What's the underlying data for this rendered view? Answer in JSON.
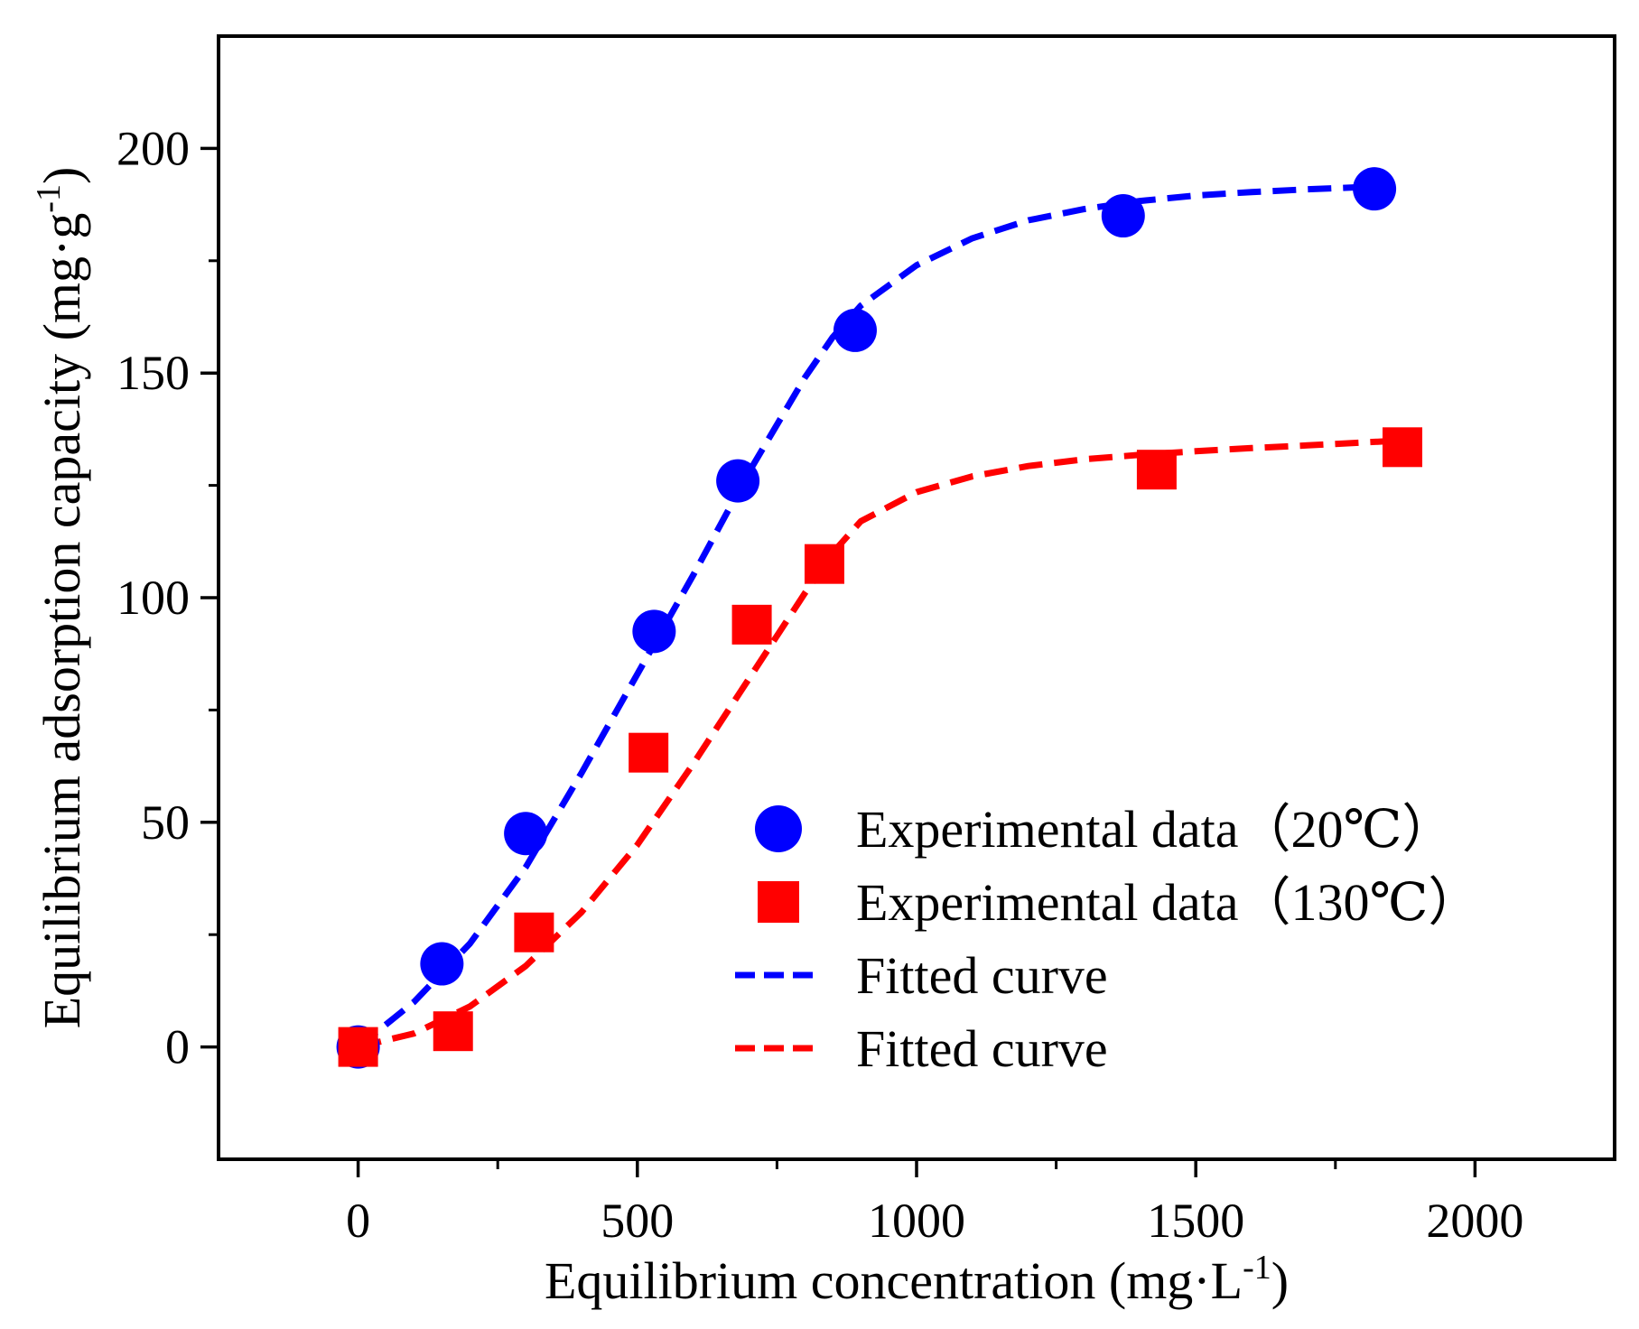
{
  "chart_data": {
    "type": "scatter",
    "title": "",
    "xlabel": {
      "prefix": "Equilibrium concentration (mg·L",
      "sup": "-1",
      "suffix": ")"
    },
    "ylabel": {
      "prefix": "Equilibrium adsorption capacity (mg·g",
      "sup": "-1",
      "suffix": ")"
    },
    "xlim": [
      -250,
      2250
    ],
    "ylim": [
      -25,
      225
    ],
    "xticks": [
      0,
      500,
      1000,
      1500,
      2000
    ],
    "xtick_labels": [
      "0",
      "500",
      "1000",
      "1500",
      "2000"
    ],
    "yticks": [
      0,
      50,
      100,
      150,
      200
    ],
    "ytick_labels": [
      "0",
      "50",
      "100",
      "150",
      "200"
    ],
    "x_minor_ticks": [
      250,
      750,
      1250,
      1750
    ],
    "y_minor_ticks": [
      25,
      75,
      125,
      175
    ],
    "grid": false,
    "legend_position": "bottom-right",
    "series": [
      {
        "name": "Experimental data（20℃）",
        "kind": "points",
        "marker": "circle",
        "color": "#0000FF",
        "x": [
          0,
          150,
          300,
          530,
          680,
          890,
          1370,
          1820
        ],
        "y": [
          0,
          18.5,
          47.5,
          92.5,
          126,
          159.5,
          185,
          191
        ]
      },
      {
        "name": "Experimental data（130℃）",
        "kind": "points",
        "marker": "square",
        "color": "#FF0000",
        "x": [
          0,
          170,
          315,
          520,
          705,
          835,
          1430,
          1870
        ],
        "y": [
          0,
          3.5,
          25.5,
          65.5,
          94,
          107.5,
          128.5,
          133.5
        ]
      },
      {
        "name": "Fitted curve",
        "kind": "line",
        "dash": "dashed",
        "color": "#0000FF",
        "x": [
          0,
          100,
          200,
          300,
          400,
          500,
          600,
          700,
          800,
          850,
          900,
          1000,
          1100,
          1200,
          1300,
          1400,
          1500,
          1600,
          1700,
          1820
        ],
        "y": [
          0,
          10,
          23,
          40,
          61,
          83,
          105,
          128,
          149,
          158,
          165,
          174,
          180,
          184,
          186.5,
          188.3,
          189.5,
          190.3,
          190.9,
          191.5
        ]
      },
      {
        "name": "Fitted curve",
        "kind": "line",
        "dash": "dashed",
        "color": "#FF0000",
        "x": [
          0,
          100,
          200,
          300,
          400,
          500,
          600,
          700,
          800,
          850,
          900,
          1000,
          1100,
          1200,
          1300,
          1400,
          1500,
          1600,
          1700,
          1870
        ],
        "y": [
          0,
          3,
          9,
          18,
          30,
          45,
          63,
          82,
          101,
          110,
          117,
          123.5,
          127,
          129.3,
          130.8,
          131.8,
          132.6,
          133.3,
          133.9,
          135
        ]
      }
    ]
  }
}
